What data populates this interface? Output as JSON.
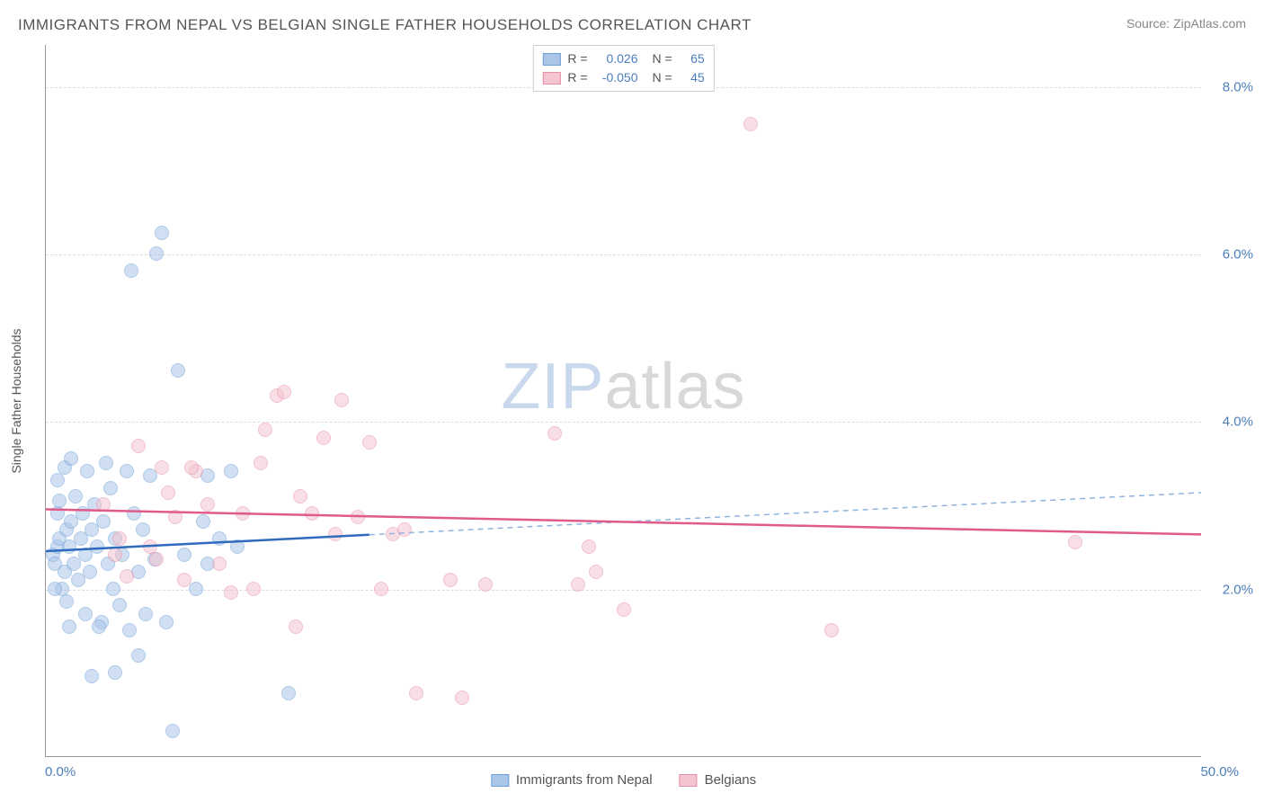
{
  "title": "IMMIGRANTS FROM NEPAL VS BELGIAN SINGLE FATHER HOUSEHOLDS CORRELATION CHART",
  "source_label": "Source: ",
  "source_site": "ZipAtlas.com",
  "watermark_a": "ZIP",
  "watermark_b": "atlas",
  "yaxis_title": "Single Father Households",
  "chart": {
    "type": "scatter",
    "xlim": [
      0,
      50
    ],
    "ylim": [
      0,
      8.5
    ],
    "yticks": [
      2,
      4,
      6,
      8
    ],
    "ytick_labels": [
      "2.0%",
      "4.0%",
      "6.0%",
      "8.0%"
    ],
    "xtick_min": "0.0%",
    "xtick_max": "50.0%",
    "background_color": "#ffffff",
    "grid_color": "#dddddd",
    "axis_color": "#999999",
    "point_radius": 8,
    "point_opacity": 0.55,
    "series": [
      {
        "id": "nepal",
        "label": "Immigrants from Nepal",
        "fill_color": "#aac5e8",
        "stroke_color": "#6f9fd8",
        "r_value": "0.026",
        "n_value": "65",
        "trend": {
          "y_start": 2.45,
          "y_end": 3.15,
          "solid_until_x": 14,
          "solid_color": "#2e6bbd",
          "dash_color": "#8fb3dd"
        },
        "points": [
          [
            0.3,
            2.4
          ],
          [
            0.5,
            2.5
          ],
          [
            0.4,
            2.3
          ],
          [
            0.6,
            2.6
          ],
          [
            0.8,
            2.2
          ],
          [
            0.9,
            2.7
          ],
          [
            0.5,
            2.9
          ],
          [
            0.7,
            2.0
          ],
          [
            1.0,
            2.5
          ],
          [
            1.1,
            2.8
          ],
          [
            1.2,
            2.3
          ],
          [
            1.3,
            3.1
          ],
          [
            1.4,
            2.1
          ],
          [
            1.5,
            2.6
          ],
          [
            1.6,
            2.9
          ],
          [
            1.7,
            2.4
          ],
          [
            1.8,
            3.4
          ],
          [
            1.9,
            2.2
          ],
          [
            2.0,
            2.7
          ],
          [
            2.1,
            3.0
          ],
          [
            2.2,
            2.5
          ],
          [
            2.4,
            1.6
          ],
          [
            2.5,
            2.8
          ],
          [
            2.7,
            2.3
          ],
          [
            2.8,
            3.2
          ],
          [
            2.9,
            2.0
          ],
          [
            3.0,
            2.6
          ],
          [
            3.2,
            1.8
          ],
          [
            3.3,
            2.4
          ],
          [
            3.5,
            3.4
          ],
          [
            3.6,
            1.5
          ],
          [
            3.8,
            2.9
          ],
          [
            4.0,
            2.2
          ],
          [
            4.2,
            2.7
          ],
          [
            4.3,
            1.7
          ],
          [
            4.5,
            3.35
          ],
          [
            4.7,
            2.35
          ],
          [
            5.0,
            6.25
          ],
          [
            5.2,
            1.6
          ],
          [
            5.5,
            0.3
          ],
          [
            5.7,
            4.6
          ],
          [
            6.0,
            2.4
          ],
          [
            3.7,
            5.8
          ],
          [
            4.8,
            6.0
          ],
          [
            6.5,
            2.0
          ],
          [
            6.8,
            2.8
          ],
          [
            7.0,
            2.3
          ],
          [
            7.5,
            2.6
          ],
          [
            8.0,
            3.4
          ],
          [
            8.3,
            2.5
          ],
          [
            1.0,
            1.55
          ],
          [
            0.8,
            3.45
          ],
          [
            0.5,
            3.3
          ],
          [
            0.9,
            1.85
          ],
          [
            1.1,
            3.55
          ],
          [
            2.3,
            1.55
          ],
          [
            3.0,
            1.0
          ],
          [
            2.0,
            0.95
          ],
          [
            4.0,
            1.2
          ],
          [
            2.6,
            3.5
          ],
          [
            1.7,
            1.7
          ],
          [
            0.4,
            2.0
          ],
          [
            0.6,
            3.05
          ],
          [
            10.5,
            0.75
          ],
          [
            7.0,
            3.35
          ]
        ]
      },
      {
        "id": "belgians",
        "label": "Belgians",
        "fill_color": "#f4c4d0",
        "stroke_color": "#e88fa8",
        "r_value": "-0.050",
        "n_value": "45",
        "trend": {
          "y_start": 2.95,
          "y_end": 2.65,
          "solid_until_x": 50,
          "solid_color": "#e15b8a",
          "dash_color": "#e15b8a"
        },
        "points": [
          [
            2.5,
            3.0
          ],
          [
            3.2,
            2.6
          ],
          [
            4.0,
            3.7
          ],
          [
            4.5,
            2.5
          ],
          [
            5.0,
            3.45
          ],
          [
            5.3,
            3.15
          ],
          [
            5.6,
            2.85
          ],
          [
            6.0,
            2.1
          ],
          [
            6.5,
            3.4
          ],
          [
            7.0,
            3.0
          ],
          [
            7.5,
            2.3
          ],
          [
            8.0,
            1.95
          ],
          [
            8.5,
            2.9
          ],
          [
            9.0,
            2.0
          ],
          [
            9.5,
            3.9
          ],
          [
            10.0,
            4.3
          ],
          [
            10.3,
            4.35
          ],
          [
            10.8,
            1.55
          ],
          [
            11.5,
            2.9
          ],
          [
            12.0,
            3.8
          ],
          [
            12.5,
            2.65
          ],
          [
            12.8,
            4.25
          ],
          [
            13.5,
            2.85
          ],
          [
            14.0,
            3.75
          ],
          [
            14.5,
            2.0
          ],
          [
            15.0,
            2.65
          ],
          [
            15.5,
            2.7
          ],
          [
            16.0,
            0.75
          ],
          [
            17.5,
            2.1
          ],
          [
            18.0,
            0.7
          ],
          [
            19.0,
            2.05
          ],
          [
            22.0,
            3.85
          ],
          [
            23.5,
            2.5
          ],
          [
            23.0,
            2.05
          ],
          [
            23.8,
            2.2
          ],
          [
            25.0,
            1.75
          ],
          [
            30.5,
            7.55
          ],
          [
            34.0,
            1.5
          ],
          [
            44.5,
            2.55
          ],
          [
            4.8,
            2.35
          ],
          [
            3.0,
            2.4
          ],
          [
            3.5,
            2.15
          ],
          [
            6.3,
            3.45
          ],
          [
            11.0,
            3.1
          ],
          [
            9.3,
            3.5
          ]
        ]
      }
    ]
  },
  "legend_stats": {
    "r_label": "R =",
    "n_label": "N ="
  }
}
